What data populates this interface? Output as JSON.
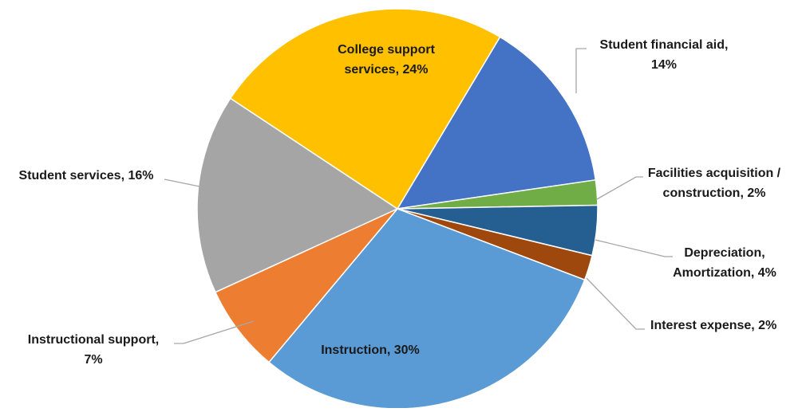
{
  "chart_data": {
    "type": "pie",
    "title": "",
    "start_angle_deg": 30.8,
    "direction": "clockwise",
    "legend": "none",
    "slices": [
      {
        "label": "Student financial aid, 14%",
        "category": "Student financial aid",
        "value": 14,
        "color": "#4472C4"
      },
      {
        "label": "Facilities acquisition / construction, 2%",
        "category": "Facilities acquisition / construction",
        "value": 2,
        "color": "#70AD47"
      },
      {
        "label": "Depreciation, Amortization, 4%",
        "category": "Depreciation, Amortization",
        "value": 4,
        "color": "#255E91"
      },
      {
        "label": "Interest expense, 2%",
        "category": "Interest expense",
        "value": 2,
        "color": "#9E480E"
      },
      {
        "label": "Instruction, 30%",
        "category": "Instruction",
        "value": 30,
        "color": "#5B9BD5"
      },
      {
        "label": "Instructional support, 7%",
        "category": "Instructional support",
        "value": 7,
        "color": "#ED7D31"
      },
      {
        "label": "Student services, 16%",
        "category": "Student services",
        "value": 16,
        "color": "#A5A5A5"
      },
      {
        "label": "College support services, 24%",
        "category": "College support services",
        "value": 24,
        "color": "#FFC000"
      }
    ],
    "label_lines": [
      [
        "Student financial aid,",
        "14%"
      ],
      [
        "Facilities acquisition /",
        "construction, 2%"
      ],
      [
        "Depreciation,",
        "Amortization, 4%"
      ],
      [
        "Interest expense, 2%"
      ],
      [
        "Instruction, 30%"
      ],
      [
        "Instructional support,",
        "7%"
      ],
      [
        "Student services, 16%"
      ],
      [
        "College support",
        "services, 24%"
      ]
    ],
    "leader_color": "#A6A6A6"
  }
}
